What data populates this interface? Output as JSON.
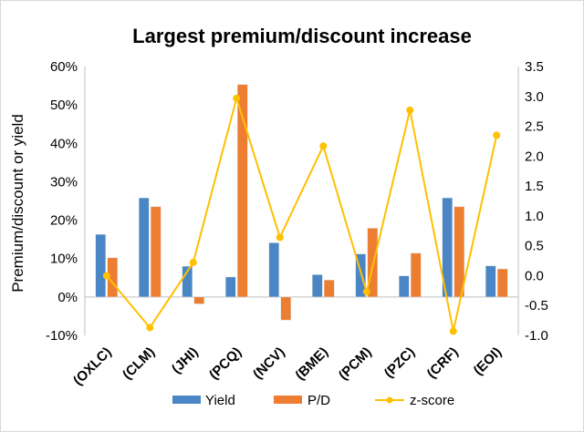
{
  "chart_data": {
    "type": "bar",
    "title": "Largest premium/discount increase",
    "ylabel": "Premium/discount or yield",
    "ylim": [
      -0.1,
      0.6
    ],
    "y2lim": [
      -1.0,
      3.5
    ],
    "y_ticks": [
      "-10%",
      "0%",
      "10%",
      "20%",
      "30%",
      "40%",
      "50%",
      "60%"
    ],
    "y2_ticks": [
      "-1.0",
      "-0.5",
      "0.0",
      "0.5",
      "1.0",
      "1.5",
      "2.0",
      "2.5",
      "3.0",
      "3.5"
    ],
    "categories": [
      "(OXLC)",
      "(CLM)",
      "(JHI)",
      "(PCQ)",
      "(NCV)",
      "(BME)",
      "(PCM)",
      "(PZC)",
      "(CRF)",
      "(EOI)"
    ],
    "series": [
      {
        "name": "Yield",
        "type": "bar",
        "axis": "left",
        "color": "#4a86c5",
        "values": [
          0.163,
          0.258,
          0.08,
          0.052,
          0.141,
          0.058,
          0.112,
          0.055,
          0.258,
          0.081
        ]
      },
      {
        "name": "P/D",
        "type": "bar",
        "axis": "left",
        "color": "#ed7d31",
        "values": [
          0.102,
          0.235,
          -0.018,
          0.553,
          -0.06,
          0.044,
          0.179,
          0.114,
          0.235,
          0.073
        ]
      },
      {
        "name": "z-score",
        "type": "line",
        "axis": "right",
        "color": "#ffc000",
        "values": [
          0.0,
          -0.87,
          0.22,
          2.97,
          0.64,
          2.17,
          -0.27,
          2.77,
          -0.93,
          2.35
        ]
      }
    ],
    "grid": false,
    "legend_position": "bottom"
  }
}
